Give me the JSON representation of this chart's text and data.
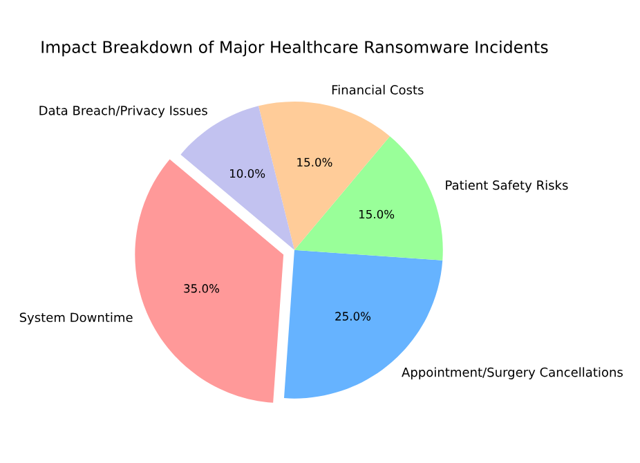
{
  "chart_data": {
    "type": "pie",
    "title": "Impact Breakdown of Major Healthcare Ransomware Incidents",
    "categories": [
      "System Downtime",
      "Appointment/Surgery Cancellations",
      "Patient Safety Risks",
      "Financial Costs",
      "Data Breach/Privacy Issues"
    ],
    "values": [
      35,
      25,
      15,
      15,
      10
    ],
    "value_labels": [
      "35.0%",
      "25.0%",
      "15.0%",
      "15.0%",
      "10.0%"
    ],
    "colors": [
      "#ff9999",
      "#66b3ff",
      "#99ff99",
      "#ffcc99",
      "#c2c2f0"
    ],
    "legend": false
  }
}
